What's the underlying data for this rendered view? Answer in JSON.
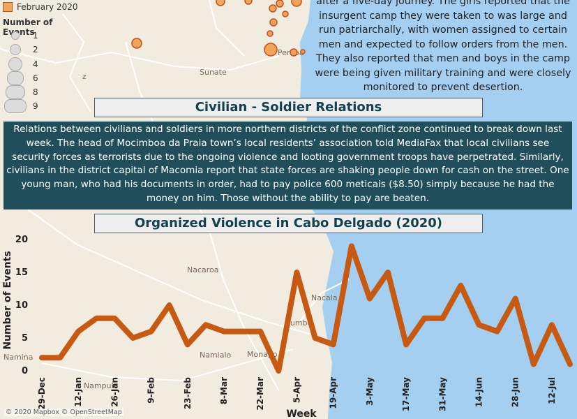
{
  "legend": {
    "date_label": "February 2020",
    "date_color": "#f0a55a",
    "size_title": "Number of Events",
    "sizes": [
      "1",
      "2",
      "4",
      "6",
      "8",
      "9"
    ]
  },
  "story_top": {
    "lines": [
      "after a five-day journey. The girls reported that the",
      "insurgent camp they were taken to was large and",
      "run patriarchally, with women assigned to certain",
      "men and expected to follow orders from the men.",
      "They also reported that men and boys in the camp",
      "were being given military training and were closely",
      "monitored to prevent desertion."
    ]
  },
  "civilian_section": {
    "heading": "Civilian - Soldier Relations",
    "body": "Relations between civilians and soldiers in more northern districts of the conflict zone continued to break down last week. The head of Mocimboa da Praia town’s local residents’ association told MediaFax that local civilians see security forces as terrorists due to the ongoing violence and looting government troops have perpetrated. Similarly, civilians in the district capital of Macomia report that state forces are shaking people down for cash on the street. One young man, who had his documents in order, had to pay police 600 meticais ($8.50) simply because he had the money on him. Those without the ability to pay are beaten."
  },
  "map": {
    "places": [
      "Sunate",
      "Pemba",
      "Nacaroa",
      "Namialo",
      "Monapo",
      "Namina",
      "Nampula",
      "Nacala",
      "Lumbo",
      "z"
    ],
    "colors": {
      "land": "#f2ebdf",
      "water": "#a5cff0",
      "road": "#ffffff",
      "marker": "#f0a55a",
      "marker_stroke": "#c0501e"
    }
  },
  "chart_data": {
    "type": "line",
    "title": "Organized Violence in Cabo Delgado (2020)",
    "xlabel": "Week",
    "ylabel": "Number of Events",
    "ylim": [
      0,
      20
    ],
    "yticks": [
      "0",
      "5",
      "10",
      "15",
      "20"
    ],
    "x_tick_labels": [
      "29-Dec",
      "12-Jan",
      "26-Jan",
      "9-Feb",
      "23-Feb",
      "8-Mar",
      "22-Mar",
      "5-Apr",
      "19-Apr",
      "3-May",
      "17-May",
      "31-May",
      "14-Jun",
      "28-Jun",
      "12-Jul"
    ],
    "x": [
      "29-Dec",
      "5-Jan",
      "12-Jan",
      "19-Jan",
      "26-Jan",
      "2-Feb",
      "9-Feb",
      "16-Feb",
      "23-Feb",
      "1-Mar",
      "8-Mar",
      "15-Mar",
      "22-Mar",
      "29-Mar",
      "5-Apr",
      "12-Apr",
      "19-Apr",
      "26-Apr",
      "3-May",
      "10-May",
      "17-May",
      "24-May",
      "31-May",
      "7-Jun",
      "14-Jun",
      "21-Jun",
      "28-Jun",
      "5-Jul",
      "12-Jul",
      "19-Jul"
    ],
    "series": [
      {
        "values": [
          2,
          2,
          6,
          8,
          8,
          5,
          6,
          10,
          4,
          7,
          6,
          6,
          6,
          0,
          15,
          5,
          4,
          19,
          11,
          15,
          4,
          8,
          8,
          13,
          7,
          6,
          11,
          1,
          7,
          1
        ],
        "color": "#c65a13"
      }
    ]
  }
}
